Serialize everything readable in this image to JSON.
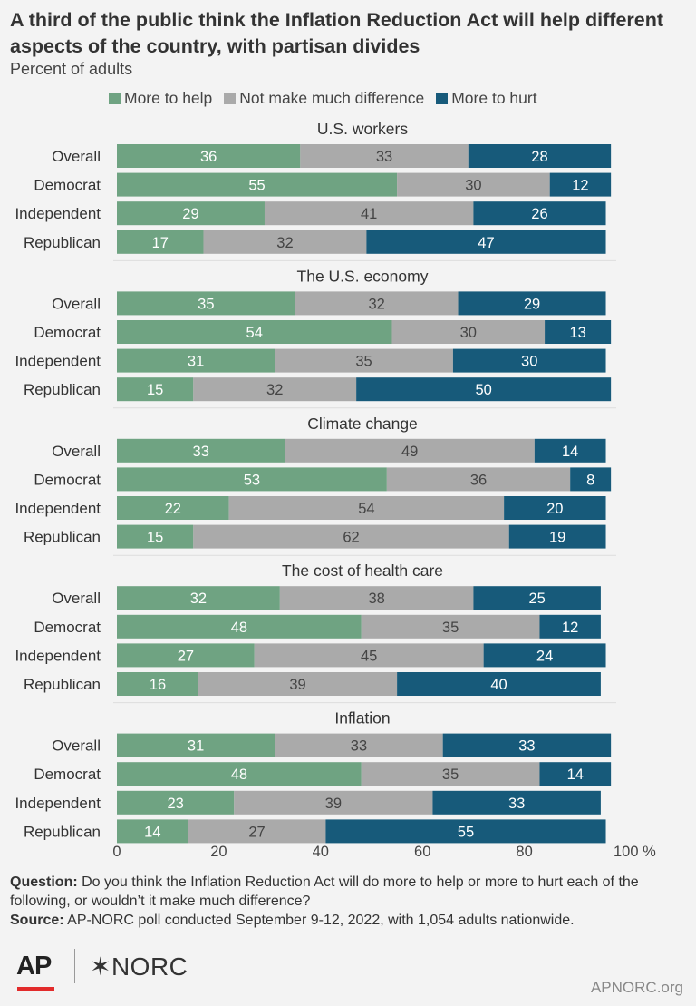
{
  "title": "A third of the public think the Inflation Reduction Act will help different aspects of the country, with partisan divides",
  "subtitle": "Percent of adults",
  "colors": {
    "help": "#6fa382",
    "neutral": "#aaaaaa",
    "hurt": "#175a7a"
  },
  "footer": {
    "question_label": "Question:",
    "question": "Do you think the Inflation Reduction Act will do more to help or more to hurt each of the following, or wouldn’t it make much difference?",
    "source_label": "Source:",
    "source": "AP-NORC poll conducted September 9-12, 2022, with 1,054 adults nationwide."
  },
  "logos": {
    "ap": "AP",
    "norc": "✶NORC"
  },
  "site": "APNORC.org",
  "chart_data": {
    "type": "bar",
    "orientation": "horizontal",
    "stacked": true,
    "series_names": [
      "More to help",
      "Not make much difference",
      "More to hurt"
    ],
    "xlim": [
      0,
      100
    ],
    "xticks": [
      "0",
      "20",
      "40",
      "60",
      "80",
      "100 %"
    ],
    "groups": [
      {
        "title": "U.S. workers",
        "rows": [
          {
            "label": "Overall",
            "values": [
              36,
              33,
              28
            ]
          },
          {
            "label": "Democrat",
            "values": [
              55,
              30,
              12
            ]
          },
          {
            "label": "Independent",
            "values": [
              29,
              41,
              26
            ]
          },
          {
            "label": "Republican",
            "values": [
              17,
              32,
              47
            ]
          }
        ]
      },
      {
        "title": "The U.S. economy",
        "rows": [
          {
            "label": "Overall",
            "values": [
              35,
              32,
              29
            ]
          },
          {
            "label": "Democrat",
            "values": [
              54,
              30,
              13
            ]
          },
          {
            "label": "Independent",
            "values": [
              31,
              35,
              30
            ]
          },
          {
            "label": "Republican",
            "values": [
              15,
              32,
              50
            ]
          }
        ]
      },
      {
        "title": "Climate change",
        "rows": [
          {
            "label": "Overall",
            "values": [
              33,
              49,
              14
            ]
          },
          {
            "label": "Democrat",
            "values": [
              53,
              36,
              8
            ]
          },
          {
            "label": "Independent",
            "values": [
              22,
              54,
              20
            ]
          },
          {
            "label": "Republican",
            "values": [
              15,
              62,
              19
            ]
          }
        ]
      },
      {
        "title": "The cost of health care",
        "rows": [
          {
            "label": "Overall",
            "values": [
              32,
              38,
              25
            ]
          },
          {
            "label": "Democrat",
            "values": [
              48,
              35,
              12
            ]
          },
          {
            "label": "Independent",
            "values": [
              27,
              45,
              24
            ]
          },
          {
            "label": "Republican",
            "values": [
              16,
              39,
              40
            ]
          }
        ]
      },
      {
        "title": "Inflation",
        "rows": [
          {
            "label": "Overall",
            "values": [
              31,
              33,
              33
            ]
          },
          {
            "label": "Democrat",
            "values": [
              48,
              35,
              14
            ]
          },
          {
            "label": "Independent",
            "values": [
              23,
              39,
              33
            ]
          },
          {
            "label": "Republican",
            "values": [
              14,
              27,
              55
            ]
          }
        ]
      }
    ]
  }
}
